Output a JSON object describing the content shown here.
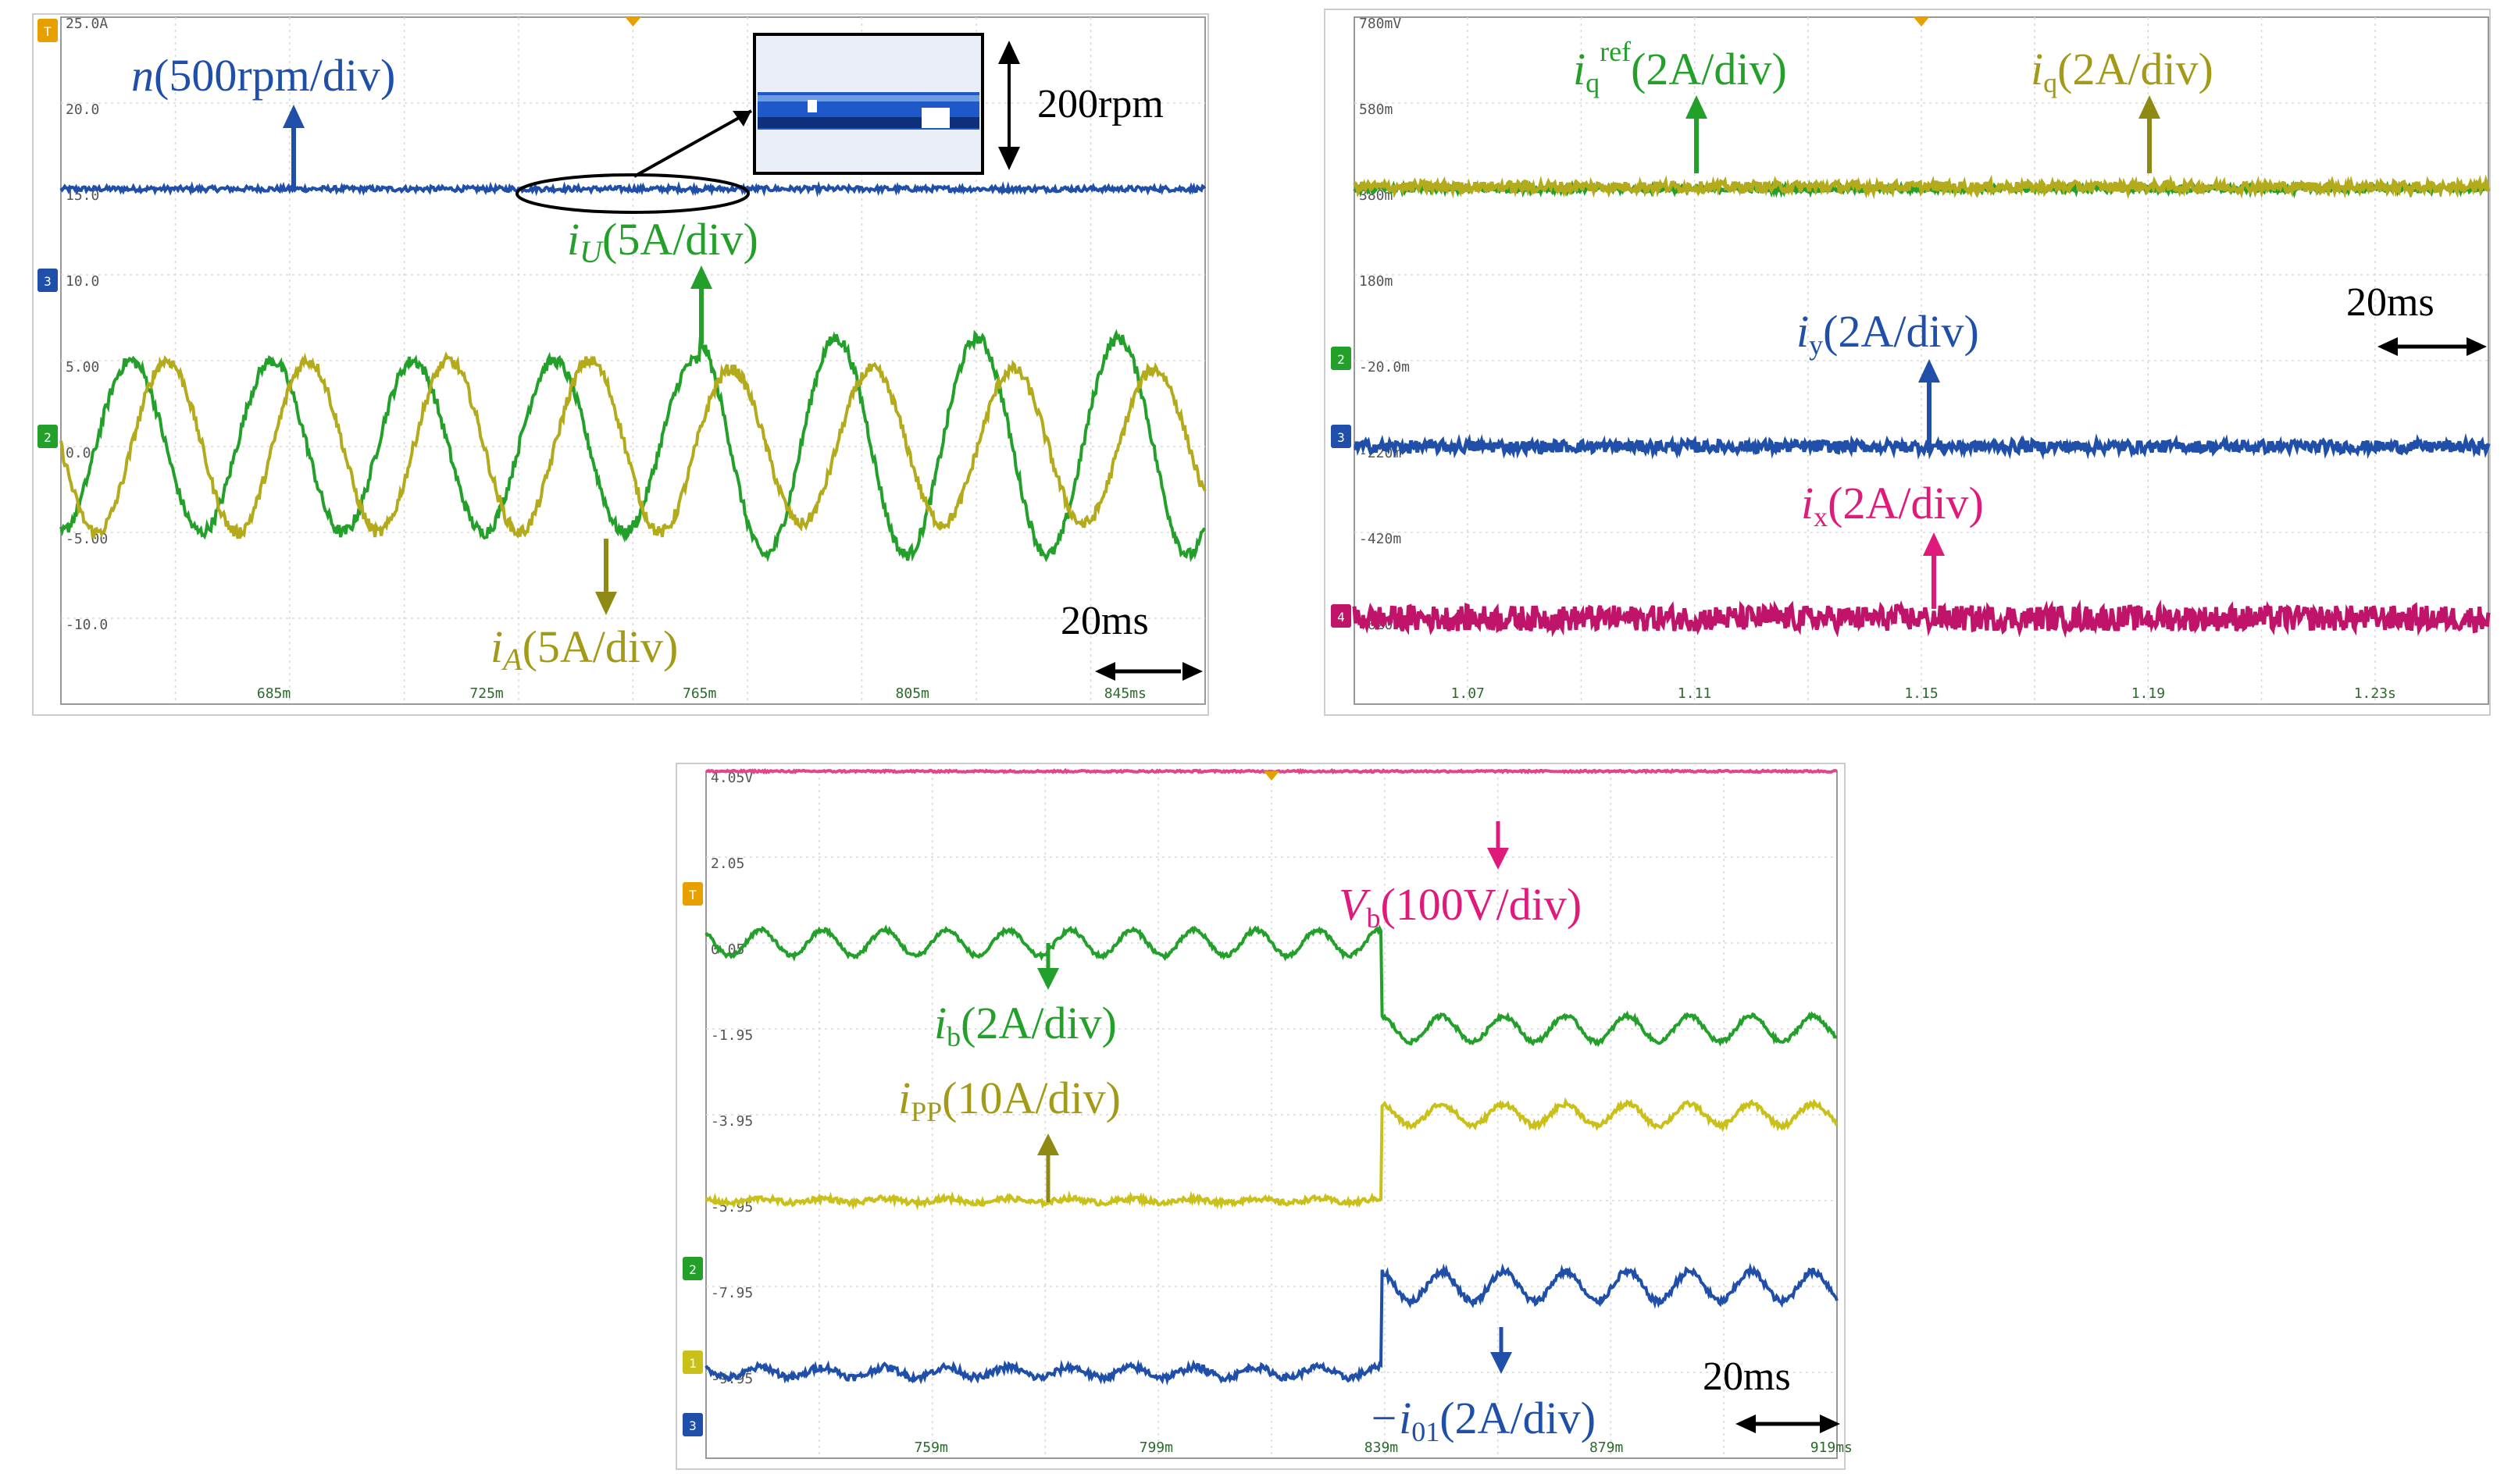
{
  "chart_data": [
    {
      "type": "line",
      "panel": "top-left",
      "y_ticks": [
        "25.0A",
        "20.0",
        "15.0",
        "10.0",
        "5.00",
        "0.0",
        "-5.00",
        "-10.0"
      ],
      "x_ticks": [
        "685m",
        "725m",
        "765m",
        "805m",
        "845ms"
      ],
      "x_tick_values": [
        0.685,
        0.725,
        0.765,
        0.805,
        0.845
      ],
      "xlim": [
        0.645,
        0.86
      ],
      "ylim": [
        -15,
        25
      ],
      "grid": true,
      "series": [
        {
          "name": "n(500rpm/div)",
          "color": "#1f4fa8",
          "kind": "const",
          "level": 15.0,
          "noise": 0.15
        },
        {
          "name": "iU(5A/div)",
          "color": "#23a02a",
          "kind": "sine",
          "amp": 5.0,
          "amp2": 6.3,
          "period": 0.0265,
          "phase": 2.6,
          "switch": 0.765,
          "noise": 0.35
        },
        {
          "name": "iA(5A/div)",
          "color": "#b3aa1c",
          "kind": "sine",
          "amp": 5.0,
          "amp2": 4.5,
          "period": 0.0265,
          "phase": 1.0,
          "switch": 0.765,
          "noise": 0.35
        }
      ],
      "annotations": {
        "n_pre": "n",
        "n_post": "(500rpm/div)",
        "iU_pre": "i",
        "iU_sub": "U",
        "iU_post": "(5A/div)",
        "iA_pre": "i",
        "iA_sub": "A",
        "iA_post": "(5A/div)",
        "zoom_label": "200rpm",
        "time_label": "20ms"
      },
      "channel_badges": [
        "T",
        "3",
        "2"
      ]
    },
    {
      "type": "line",
      "panel": "top-right",
      "y_ticks": [
        "780mV",
        "580m",
        "380m",
        "180m",
        "-20.0m",
        "-220m",
        "-420m",
        "-620m"
      ],
      "x_ticks": [
        "1.07",
        "1.11",
        "1.15",
        "1.19",
        "1.23s"
      ],
      "x_tick_values": [
        1.07,
        1.11,
        1.15,
        1.19,
        1.23
      ],
      "xlim": [
        1.05,
        1.25
      ],
      "ylim": [
        -820,
        780
      ],
      "grid": true,
      "series": [
        {
          "name": "iq ref(2A/div)",
          "color": "#23a02a",
          "kind": "const",
          "level": 380,
          "noise": 6
        },
        {
          "name": "iq(2A/div)",
          "color": "#b3aa1c",
          "kind": "const",
          "level": 385,
          "noise": 12
        },
        {
          "name": "iy(2A/div)",
          "color": "#1f4fa8",
          "kind": "const",
          "level": -220,
          "noise": 14
        },
        {
          "name": "ix(2A/div)",
          "color": "#c0146a",
          "kind": "const",
          "level": -620,
          "noise": 30
        }
      ],
      "annotations": {
        "iqref_pre": "i",
        "iqref_sub": "q",
        "iqref_sup": "ref",
        "iqref_post": "(2A/div)",
        "iq_pre": "i",
        "iq_sub": "q",
        "iq_post": "(2A/div)",
        "iy_pre": "i",
        "iy_sub": "y",
        "iy_post": "(2A/div)",
        "ix_pre": "i",
        "ix_sub": "x",
        "ix_post": "(2A/div)",
        "time_label": "20ms"
      },
      "channel_badges": [
        "2",
        "3",
        "4"
      ]
    },
    {
      "type": "line",
      "panel": "bottom",
      "y_ticks": [
        "4.05V",
        "2.05",
        "0.05",
        "-1.95",
        "-3.95",
        "-5.95",
        "-7.95",
        "-9.95"
      ],
      "x_ticks": [
        "759m",
        "799m",
        "839m",
        "879m",
        "919ms"
      ],
      "x_tick_values": [
        0.759,
        0.799,
        0.839,
        0.879,
        0.919
      ],
      "xlim": [
        0.719,
        0.92
      ],
      "ylim": [
        -11.95,
        4.05
      ],
      "grid": true,
      "series": [
        {
          "name": "Vb(100V/div)",
          "color": "#e0468c",
          "kind": "const",
          "level": 4.05,
          "noise": 0.02
        },
        {
          "name": "ib(2A/div)",
          "color": "#23a02a",
          "kind": "step",
          "level1": 0.05,
          "level2": -1.95,
          "ripple1": 0.3,
          "ripple2": 0.3,
          "period": 0.011,
          "switch": 0.839,
          "noise": 0.05
        },
        {
          "name": "iPP(10A/div)",
          "color": "#c9c11a",
          "kind": "step",
          "level1": -5.95,
          "level2": -3.95,
          "ripple1": 0.05,
          "ripple2": 0.25,
          "period": 0.011,
          "switch": 0.839,
          "noise": 0.06
        },
        {
          "name": "-i01(2A/div)",
          "color": "#1f4fa8",
          "kind": "step",
          "level1": -9.95,
          "level2": -7.95,
          "ripple1": 0.12,
          "ripple2": 0.35,
          "period": 0.011,
          "switch": 0.839,
          "noise": 0.08
        }
      ],
      "annotations": {
        "vb_pre": "V",
        "vb_sub": "b",
        "vb_post": "(100V/div)",
        "ib_pre": "i",
        "ib_sub": "b",
        "ib_post": "(2A/div)",
        "ipp_pre": "i",
        "ipp_sub": "PP",
        "ipp_post": "(10A/div)",
        "i01_pre": "−i",
        "i01_sub": "01",
        "i01_post": "(2A/div)",
        "time_label": "20ms"
      },
      "channel_badges": [
        "T",
        "2",
        "1",
        "3"
      ]
    }
  ],
  "colors": {
    "blue": "#1f4fa8",
    "green": "#23a02a",
    "olive": "#b3aa1c",
    "magenta": "#c0146a",
    "pink": "#e0468c"
  }
}
